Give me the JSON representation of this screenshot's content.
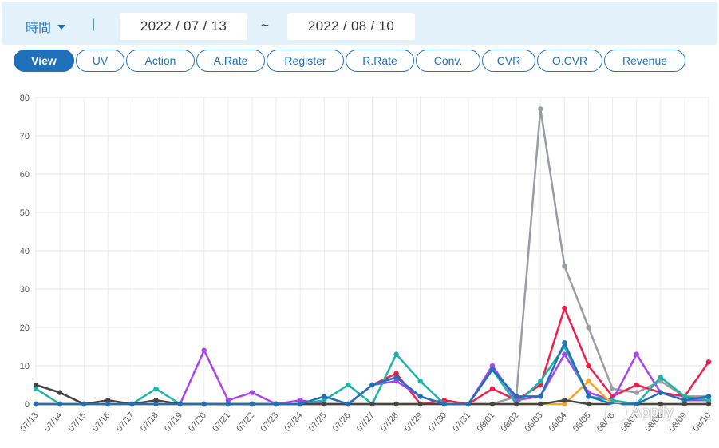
{
  "header": {
    "time_label": "時間",
    "separator": "|",
    "date_start": "2022 / 07 / 13",
    "date_tilde": "~",
    "date_end": "2022 / 08 / 10"
  },
  "tabs": [
    {
      "label": "View",
      "active": true
    },
    {
      "label": "UV",
      "active": false
    },
    {
      "label": "Action",
      "active": false
    },
    {
      "label": "A.Rate",
      "active": false
    },
    {
      "label": "Register",
      "active": false
    },
    {
      "label": "R.Rate",
      "active": false
    },
    {
      "label": "Conv.",
      "active": false
    },
    {
      "label": "CVR",
      "active": false
    },
    {
      "label": "O.CVR",
      "active": false
    },
    {
      "label": "Revenue",
      "active": false
    }
  ],
  "watermark": {
    "text": "Appify",
    "icon": "wechat-icon"
  },
  "colors": {
    "accent": "#1f70b8",
    "header_bg": "#e3f1fb"
  },
  "chart_data": {
    "type": "line",
    "title": "",
    "xlabel": "",
    "ylabel": "",
    "ylim": [
      0,
      80
    ],
    "yticks": [
      0,
      10,
      20,
      30,
      40,
      50,
      60,
      70,
      80
    ],
    "grid": true,
    "legend": "none",
    "categories": [
      "07/13",
      "07/14",
      "07/15",
      "07/16",
      "07/17",
      "07/18",
      "07/19",
      "07/20",
      "07/21",
      "07/22",
      "07/23",
      "07/24",
      "07/25",
      "07/26",
      "07/27",
      "07/28",
      "07/29",
      "07/30",
      "07/31",
      "08/01",
      "08/02",
      "08/03",
      "08/04",
      "08/05",
      "08/06",
      "08/07",
      "08/08",
      "08/09",
      "08/10"
    ],
    "series": [
      {
        "color": "#999ca3",
        "values": [
          0,
          0,
          0,
          0,
          0,
          0,
          0,
          0,
          0,
          0,
          0,
          0,
          0,
          0,
          0,
          0,
          0,
          0,
          0,
          0,
          2,
          77,
          36,
          20,
          4,
          3,
          6,
          2,
          2
        ]
      },
      {
        "color": "#ef1f4c",
        "values": [
          0,
          0,
          0,
          0,
          0,
          0,
          0,
          0,
          0,
          0,
          0,
          0,
          0,
          0,
          5,
          8,
          0,
          1,
          0,
          4,
          1,
          5,
          25,
          10,
          2,
          5,
          3,
          2,
          11
        ]
      },
      {
        "color": "#a845f0",
        "values": [
          0,
          0,
          0,
          0,
          0,
          0,
          0,
          14,
          1,
          3,
          0,
          1,
          0,
          0,
          5,
          6,
          2,
          0,
          0,
          10,
          1,
          2,
          13,
          3,
          1,
          13,
          3,
          1,
          1
        ]
      },
      {
        "color": "#1db3a8",
        "values": [
          4,
          0,
          0,
          0,
          0,
          4,
          0,
          0,
          0,
          0,
          0,
          0,
          1,
          5,
          0,
          13,
          6,
          0,
          0,
          9,
          0,
          6,
          15,
          2,
          1,
          0,
          7,
          2,
          1
        ]
      },
      {
        "color": "#f5a623",
        "values": [
          0,
          0,
          0,
          0,
          0,
          0,
          0,
          0,
          0,
          0,
          0,
          0,
          0,
          0,
          0,
          0,
          0,
          0,
          0,
          0,
          0,
          0,
          0,
          6,
          0,
          0,
          0,
          0,
          0
        ]
      },
      {
        "color": "#444444",
        "values": [
          5,
          3,
          0,
          1,
          0,
          1,
          0,
          0,
          0,
          0,
          0,
          0,
          0,
          0,
          0,
          0,
          0,
          0,
          0,
          0,
          0,
          0,
          1,
          0,
          0,
          0,
          0,
          0,
          0
        ]
      },
      {
        "color": "#1f70b8",
        "values": [
          0,
          0,
          0,
          0,
          0,
          0,
          0,
          0,
          0,
          0,
          0,
          0,
          2,
          0,
          5,
          7,
          2,
          0,
          0,
          9,
          2,
          2,
          16,
          2,
          0,
          0,
          3,
          1,
          2
        ]
      }
    ]
  }
}
